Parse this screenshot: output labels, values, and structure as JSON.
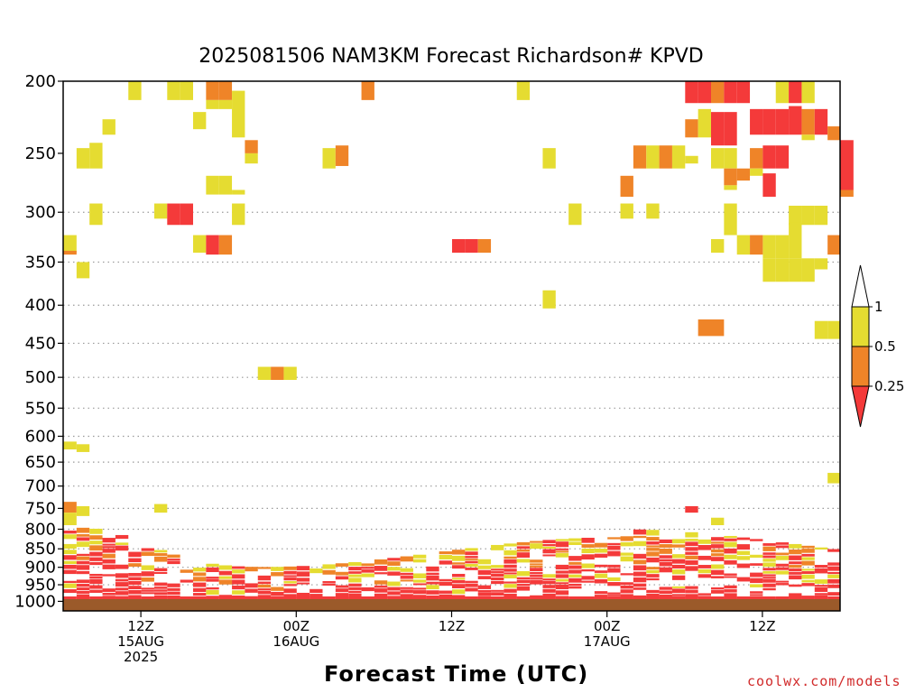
{
  "chart_data": {
    "type": "heatmap",
    "title": "2025081506 NAM3KM Forecast Richardson# KPVD",
    "xlabel": "Forecast Time (UTC)",
    "credit": "coolwx.com/models",
    "y_ticks": [
      "200",
      "250",
      "300",
      "350",
      "400",
      "450",
      "500",
      "550",
      "600",
      "650",
      "700",
      "750",
      "800",
      "850",
      "900",
      "950",
      "1000"
    ],
    "x_ticks": [
      {
        "hour": 6,
        "l1": "12Z",
        "l2": "15AUG",
        "l3": "2025"
      },
      {
        "hour": 18,
        "l1": "00Z",
        "l2": "16AUG",
        "l3": ""
      },
      {
        "hour": 30,
        "l1": "12Z",
        "l2": "",
        "l3": ""
      },
      {
        "hour": 42,
        "l1": "00Z",
        "l2": "17AUG",
        "l3": ""
      },
      {
        "hour": 54,
        "l1": "12Z",
        "l2": "",
        "l3": ""
      }
    ],
    "x_range_hours": [
      0,
      60
    ],
    "y_range_hPa": [
      200,
      1030
    ],
    "y_scale": "log-pressure",
    "dotted_grid_levels": [
      300,
      350,
      400,
      450,
      500,
      550,
      600,
      650,
      700,
      750,
      800,
      850,
      900,
      950,
      1000
    ],
    "legend": {
      "position": "right",
      "levels": [
        "1",
        "0.5",
        "0.25"
      ],
      "colors": {
        "lt_0.25": "#f43a3a",
        "0.25_0.5": "#ef8428",
        "0.5_1": "#e5dc31",
        "gt_1": "#ffffff"
      }
    },
    "ground_color": "#9b5a2a",
    "cell_width_hours": 1,
    "cells": [
      {
        "t": 5,
        "p": [
          200,
          212
        ],
        "v": "y"
      },
      {
        "t": 8,
        "p": [
          200,
          212
        ],
        "v": "y"
      },
      {
        "t": 9,
        "p": [
          200,
          212
        ],
        "v": "y"
      },
      {
        "t": 11,
        "p": [
          200,
          212
        ],
        "v": "o"
      },
      {
        "t": 12,
        "p": [
          200,
          212
        ],
        "v": "o"
      },
      {
        "t": 23,
        "p": [
          200,
          212
        ],
        "v": "o"
      },
      {
        "t": 35,
        "p": [
          200,
          212
        ],
        "v": "y"
      },
      {
        "t": 48,
        "p": [
          200,
          214
        ],
        "v": "r"
      },
      {
        "t": 49,
        "p": [
          200,
          214
        ],
        "v": "r"
      },
      {
        "t": 50,
        "p": [
          200,
          214
        ],
        "v": "o"
      },
      {
        "t": 51,
        "p": [
          200,
          214
        ],
        "v": "r"
      },
      {
        "t": 52,
        "p": [
          200,
          214
        ],
        "v": "r"
      },
      {
        "t": 55,
        "p": [
          200,
          214
        ],
        "v": "y"
      },
      {
        "t": 56,
        "p": [
          200,
          214
        ],
        "v": "r"
      },
      {
        "t": 57,
        "p": [
          200,
          214
        ],
        "v": "y"
      },
      {
        "t": 11,
        "p": [
          212,
          218
        ],
        "v": "y"
      },
      {
        "t": 12,
        "p": [
          212,
          218
        ],
        "v": "y"
      },
      {
        "t": 13,
        "p": [
          206,
          238
        ],
        "v": "y"
      },
      {
        "t": 10,
        "p": [
          220,
          232
        ],
        "v": "y"
      },
      {
        "t": 3,
        "p": [
          225,
          236
        ],
        "v": "y"
      },
      {
        "t": 48,
        "p": [
          225,
          238
        ],
        "v": "o"
      },
      {
        "t": 49,
        "p": [
          218,
          238
        ],
        "v": "y"
      },
      {
        "t": 50,
        "p": [
          220,
          244
        ],
        "v": "r"
      },
      {
        "t": 51,
        "p": [
          220,
          244
        ],
        "v": "r"
      },
      {
        "t": 53,
        "p": [
          218,
          236
        ],
        "v": "r"
      },
      {
        "t": 54,
        "p": [
          218,
          236
        ],
        "v": "r"
      },
      {
        "t": 55,
        "p": [
          218,
          236
        ],
        "v": "r"
      },
      {
        "t": 56,
        "p": [
          216,
          236
        ],
        "v": "r"
      },
      {
        "t": 57,
        "p": [
          218,
          236
        ],
        "v": "o"
      },
      {
        "t": 58,
        "p": [
          218,
          236
        ],
        "v": "r"
      },
      {
        "t": 59,
        "p": [
          230,
          240
        ],
        "v": "o"
      },
      {
        "t": 57,
        "p": [
          236,
          240
        ],
        "v": "y"
      },
      {
        "t": 1,
        "p": [
          246,
          262
        ],
        "v": "y"
      },
      {
        "t": 2,
        "p": [
          242,
          262
        ],
        "v": "y"
      },
      {
        "t": 14,
        "p": [
          240,
          250
        ],
        "v": "o"
      },
      {
        "t": 14,
        "p": [
          250,
          258
        ],
        "v": "y"
      },
      {
        "t": 20,
        "p": [
          246,
          262
        ],
        "v": "y"
      },
      {
        "t": 21,
        "p": [
          244,
          260
        ],
        "v": "o"
      },
      {
        "t": 37,
        "p": [
          246,
          262
        ],
        "v": "y"
      },
      {
        "t": 44,
        "p": [
          244,
          262
        ],
        "v": "o"
      },
      {
        "t": 45,
        "p": [
          244,
          262
        ],
        "v": "y"
      },
      {
        "t": 46,
        "p": [
          244,
          262
        ],
        "v": "o"
      },
      {
        "t": 47,
        "p": [
          244,
          262
        ],
        "v": "y"
      },
      {
        "t": 48,
        "p": [
          252,
          258
        ],
        "v": "y"
      },
      {
        "t": 50,
        "p": [
          246,
          262
        ],
        "v": "y"
      },
      {
        "t": 51,
        "p": [
          246,
          262
        ],
        "v": "y"
      },
      {
        "t": 53,
        "p": [
          246,
          262
        ],
        "v": "o"
      },
      {
        "t": 54,
        "p": [
          244,
          262
        ],
        "v": "r"
      },
      {
        "t": 55,
        "p": [
          244,
          262
        ],
        "v": "r"
      },
      {
        "t": 60,
        "p": [
          240,
          280
        ],
        "v": "r"
      },
      {
        "t": 52,
        "p": [
          262,
          272
        ],
        "v": "o"
      },
      {
        "t": 53,
        "p": [
          262,
          268
        ],
        "v": "y"
      },
      {
        "t": 11,
        "p": [
          268,
          284
        ],
        "v": "y"
      },
      {
        "t": 12,
        "p": [
          268,
          284
        ],
        "v": "y"
      },
      {
        "t": 13,
        "p": [
          280,
          284
        ],
        "v": "y"
      },
      {
        "t": 43,
        "p": [
          268,
          286
        ],
        "v": "o"
      },
      {
        "t": 51,
        "p": [
          262,
          276
        ],
        "v": "o"
      },
      {
        "t": 51,
        "p": [
          276,
          280
        ],
        "v": "y"
      },
      {
        "t": 54,
        "p": [
          266,
          286
        ],
        "v": "r"
      },
      {
        "t": 60,
        "p": [
          280,
          286
        ],
        "v": "o"
      },
      {
        "t": 2,
        "p": [
          292,
          312
        ],
        "v": "y"
      },
      {
        "t": 7,
        "p": [
          292,
          306
        ],
        "v": "y"
      },
      {
        "t": 8,
        "p": [
          292,
          312
        ],
        "v": "r"
      },
      {
        "t": 9,
        "p": [
          292,
          312
        ],
        "v": "r"
      },
      {
        "t": 13,
        "p": [
          292,
          312
        ],
        "v": "y"
      },
      {
        "t": 39,
        "p": [
          292,
          312
        ],
        "v": "y"
      },
      {
        "t": 43,
        "p": [
          292,
          306
        ],
        "v": "y"
      },
      {
        "t": 45,
        "p": [
          292,
          306
        ],
        "v": "y"
      },
      {
        "t": 51,
        "p": [
          292,
          322
        ],
        "v": "y"
      },
      {
        "t": 56,
        "p": [
          294,
          312
        ],
        "v": "y"
      },
      {
        "t": 57,
        "p": [
          294,
          312
        ],
        "v": "y"
      },
      {
        "t": 58,
        "p": [
          294,
          312
        ],
        "v": "y"
      },
      {
        "t": 0,
        "p": [
          322,
          340
        ],
        "v": "y"
      },
      {
        "t": 0,
        "p": [
          338,
          342
        ],
        "v": "o"
      },
      {
        "t": 10,
        "p": [
          322,
          340
        ],
        "v": "y"
      },
      {
        "t": 11,
        "p": [
          322,
          342
        ],
        "v": "r"
      },
      {
        "t": 12,
        "p": [
          322,
          342
        ],
        "v": "o"
      },
      {
        "t": 30,
        "p": [
          326,
          340
        ],
        "v": "r"
      },
      {
        "t": 31,
        "p": [
          326,
          340
        ],
        "v": "r"
      },
      {
        "t": 32,
        "p": [
          326,
          340
        ],
        "v": "o"
      },
      {
        "t": 50,
        "p": [
          326,
          340
        ],
        "v": "y"
      },
      {
        "t": 52,
        "p": [
          322,
          342
        ],
        "v": "y"
      },
      {
        "t": 53,
        "p": [
          322,
          342
        ],
        "v": "o"
      },
      {
        "t": 54,
        "p": [
          322,
          346
        ],
        "v": "y"
      },
      {
        "t": 55,
        "p": [
          322,
          346
        ],
        "v": "y"
      },
      {
        "t": 56,
        "p": [
          310,
          346
        ],
        "v": "y"
      },
      {
        "t": 59,
        "p": [
          322,
          342
        ],
        "v": "o"
      },
      {
        "t": 1,
        "p": [
          350,
          368
        ],
        "v": "y"
      },
      {
        "t": 54,
        "p": [
          346,
          372
        ],
        "v": "y"
      },
      {
        "t": 55,
        "p": [
          346,
          372
        ],
        "v": "y"
      },
      {
        "t": 56,
        "p": [
          346,
          372
        ],
        "v": "y"
      },
      {
        "t": 57,
        "p": [
          346,
          372
        ],
        "v": "y"
      },
      {
        "t": 58,
        "p": [
          346,
          358
        ],
        "v": "y"
      },
      {
        "t": 37,
        "p": [
          382,
          404
        ],
        "v": "y"
      },
      {
        "t": 49,
        "p": [
          418,
          440
        ],
        "v": "o"
      },
      {
        "t": 50,
        "p": [
          418,
          440
        ],
        "v": "o"
      },
      {
        "t": 58,
        "p": [
          420,
          444
        ],
        "v": "y"
      },
      {
        "t": 59,
        "p": [
          420,
          444
        ],
        "v": "y"
      },
      {
        "t": 15,
        "p": [
          484,
          504
        ],
        "v": "y"
      },
      {
        "t": 16,
        "p": [
          484,
          504
        ],
        "v": "o"
      },
      {
        "t": 17,
        "p": [
          484,
          504
        ],
        "v": "y"
      },
      {
        "t": 0,
        "p": [
          610,
          625
        ],
        "v": "y"
      },
      {
        "t": 1,
        "p": [
          615,
          630
        ],
        "v": "y"
      },
      {
        "t": 59,
        "p": [
          672,
          694
        ],
        "v": "y"
      },
      {
        "t": 48,
        "p": [
          745,
          760
        ],
        "v": "r"
      },
      {
        "t": 50,
        "p": [
          772,
          790
        ],
        "v": "y"
      },
      {
        "t": 0,
        "p": [
          735,
          760
        ],
        "v": "o"
      },
      {
        "t": 1,
        "p": [
          745,
          768
        ],
        "v": "y"
      },
      {
        "t": 0,
        "p": [
          760,
          790
        ],
        "v": "y"
      },
      {
        "t": 7,
        "p": [
          740,
          760
        ],
        "v": "y"
      }
    ],
    "low_level_band": "mixed red/orange/yellow stability layer between ~770 and 1000 hPa over the full forecast period"
  }
}
